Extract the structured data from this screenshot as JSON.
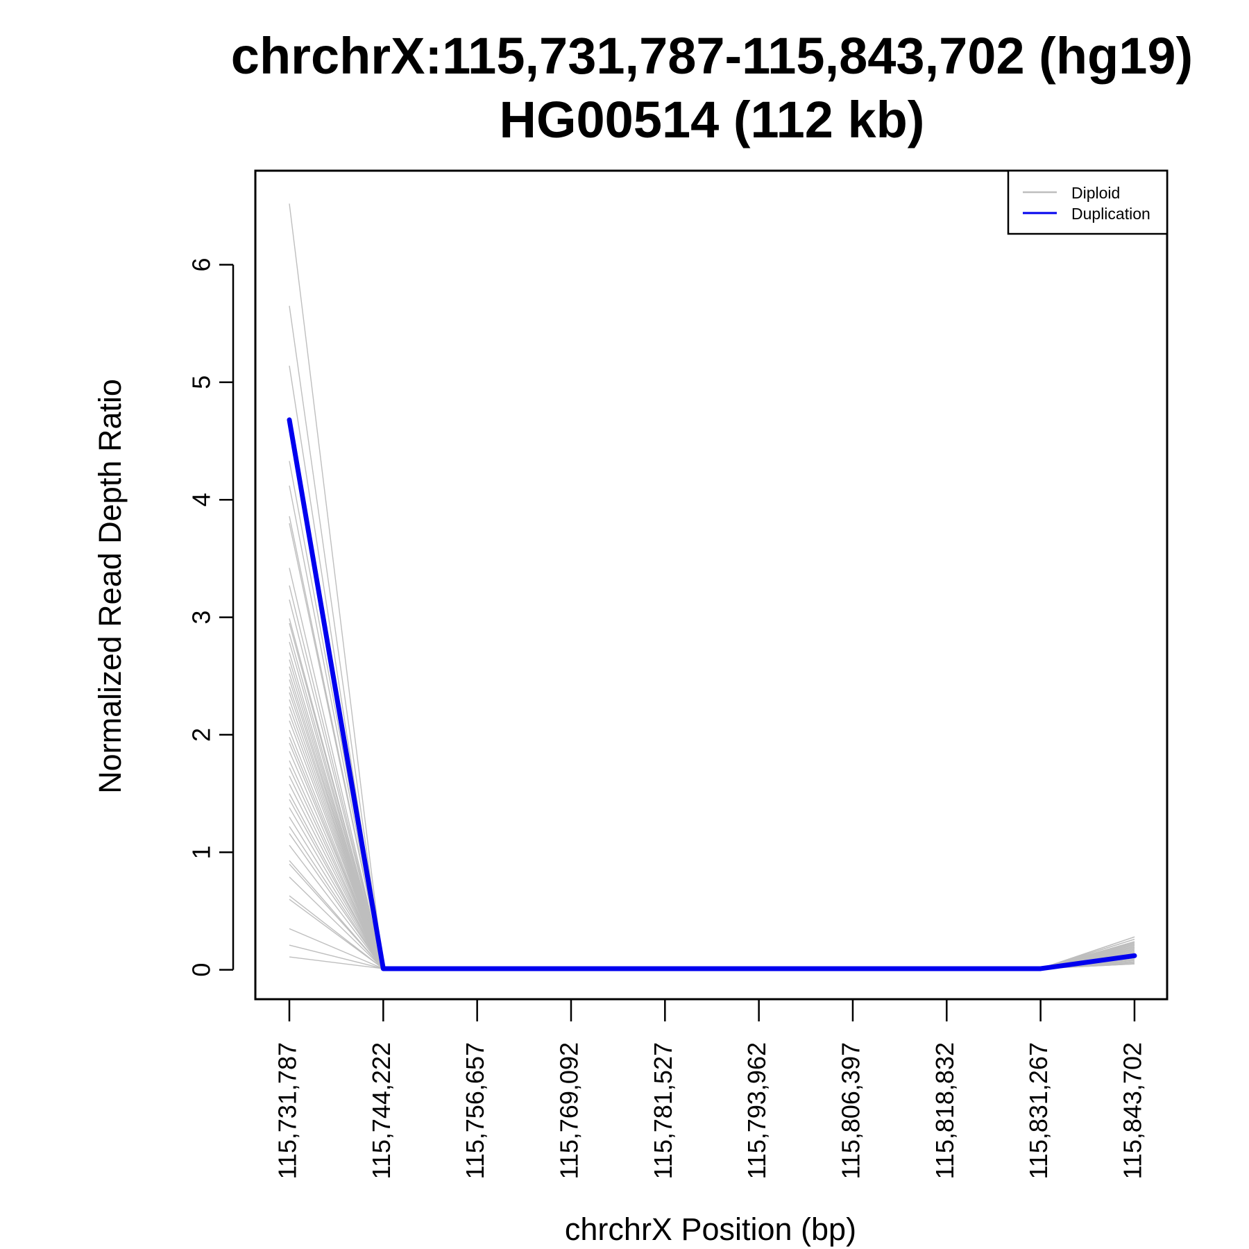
{
  "chart_data": {
    "type": "line",
    "title_line1": "chrchrX:115,731,787-115,843,702 (hg19)",
    "title_line2": "HG00514 (112 kb)",
    "xlabel": "chrchrX Position (bp)",
    "ylabel": "Normalized Read Depth Ratio",
    "x_ticks": [
      "115,731,787",
      "115,744,222",
      "115,756,657",
      "115,769,092",
      "115,781,527",
      "115,793,962",
      "115,806,397",
      "115,818,832",
      "115,831,267",
      "115,843,702"
    ],
    "ylim": [
      -0.25,
      6.8
    ],
    "y_ticks": [
      0,
      1,
      2,
      3,
      4,
      5,
      6
    ],
    "legend": {
      "position": "top-right",
      "items": [
        {
          "label": "Diploid",
          "color": "#BEBEBE"
        },
        {
          "label": "Duplication",
          "color": "#0000EE"
        }
      ]
    },
    "diploid_color": "#BEBEBE",
    "sample_color": "#0000EE",
    "diploid_series": {
      "start_values": [
        6.52,
        5.65,
        5.14,
        4.33,
        4.12,
        3.86,
        3.8,
        3.42,
        3.27,
        3.15,
        2.99,
        2.95,
        2.86,
        2.79,
        2.7,
        2.64,
        2.58,
        2.52,
        2.47,
        2.41,
        2.36,
        2.3,
        2.24,
        2.18,
        2.12,
        2.04,
        1.98,
        1.93,
        1.86,
        1.78,
        1.72,
        1.65,
        1.58,
        1.5,
        1.45,
        1.38,
        1.3,
        1.22,
        1.16,
        1.06,
        0.93,
        0.9,
        0.79,
        0.63,
        0.6,
        0.35,
        0.21,
        0.11
      ],
      "end_values": [
        0.28,
        0.26,
        0.24,
        0.23,
        0.22,
        0.21,
        0.2,
        0.19,
        0.18,
        0.17,
        0.16,
        0.15,
        0.14,
        0.13,
        0.12,
        0.11,
        0.1,
        0.09,
        0.08,
        0.07,
        0.06,
        0.05
      ]
    },
    "sample_series": {
      "name": "HG00514",
      "values": [
        4.68,
        0.01,
        0.01,
        0.01,
        0.01,
        0.01,
        0.01,
        0.01,
        0.01,
        0.12
      ]
    }
  }
}
